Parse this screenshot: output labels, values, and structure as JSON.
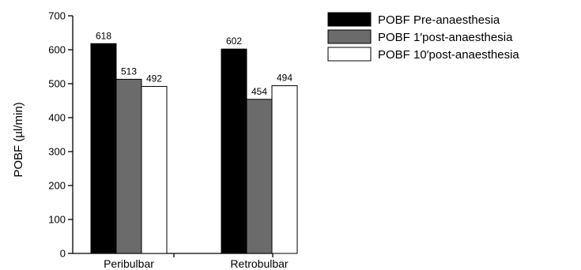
{
  "chart_data": {
    "type": "bar",
    "title": "",
    "xlabel": "",
    "ylabel": "POBF (µl/min)",
    "ylim": [
      0,
      700
    ],
    "yticks": [
      0,
      100,
      200,
      300,
      400,
      500,
      600,
      700
    ],
    "categories": [
      "Peribulbar",
      "Retrobulbar"
    ],
    "series": [
      {
        "name": "POBF  Pre-anaesthesia",
        "values": [
          618,
          602
        ],
        "color": "#000000"
      },
      {
        "name": "POBF  1′post-anaesthesia",
        "values": [
          513,
          454
        ],
        "color": "#6b6b6b"
      },
      {
        "name": "POBF  10′post-anaesthesia",
        "values": [
          492,
          494
        ],
        "color": "#ffffff"
      }
    ],
    "grid": false,
    "legend_position": "top-right",
    "data_labels": true
  }
}
